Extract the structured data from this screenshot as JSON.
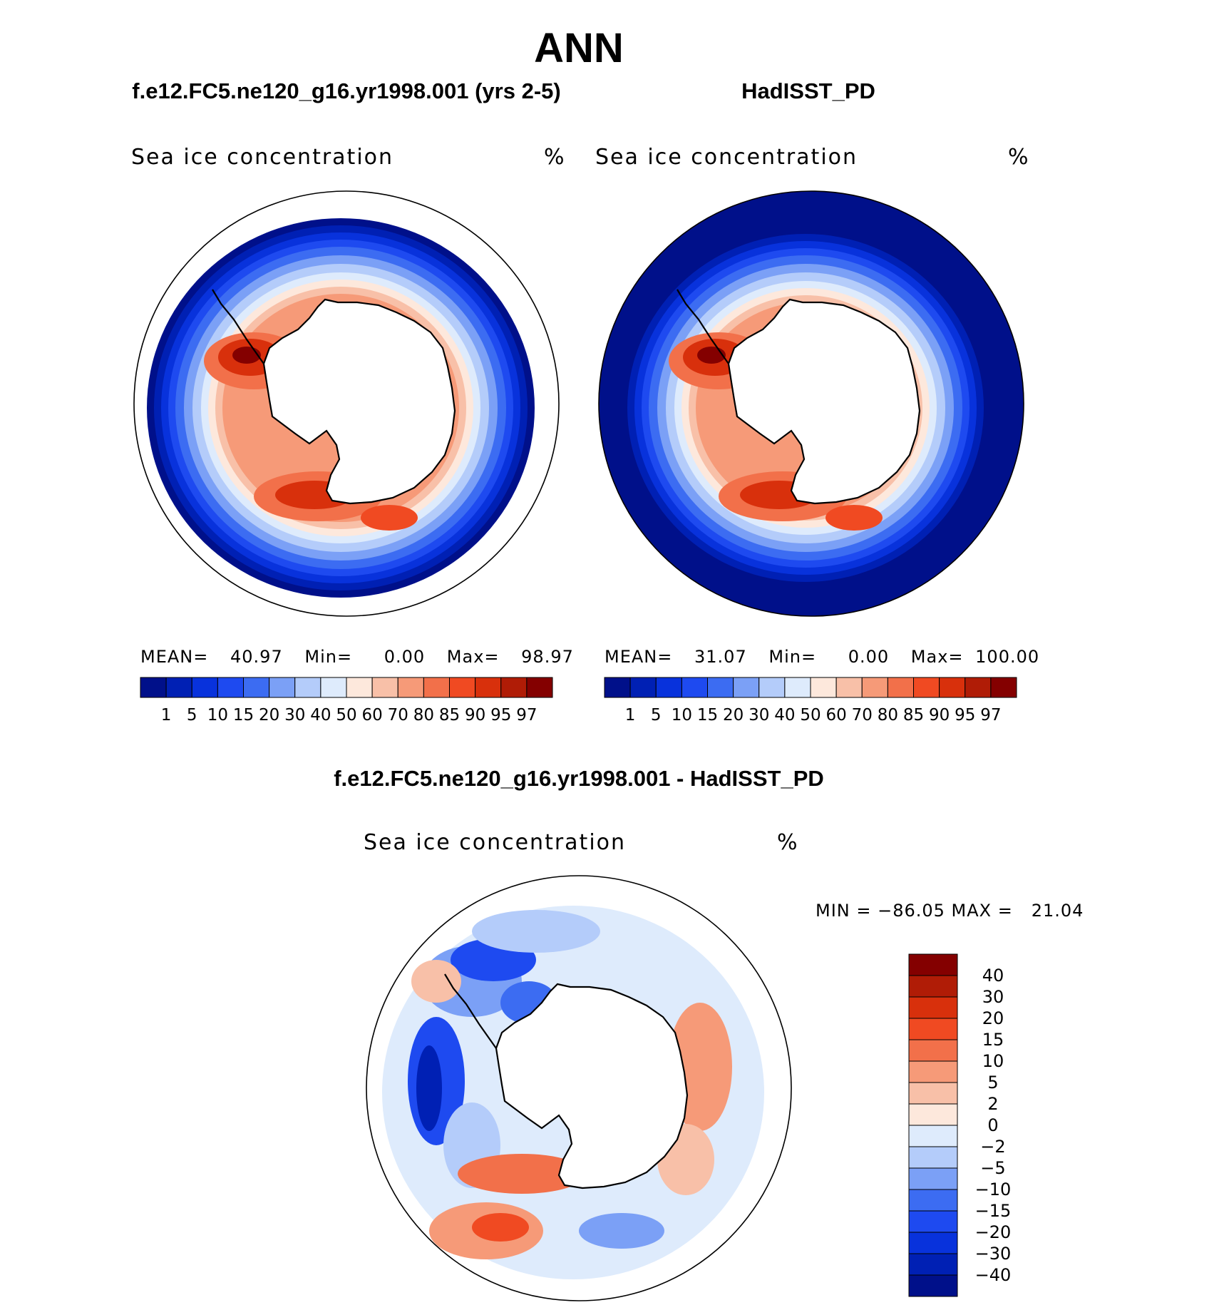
{
  "title": "ANN",
  "panels": [
    {
      "id": "model",
      "case_title": "f.e12.FC5.ne120_g16.yr1998.001 (yrs 2-5)",
      "field_label": "Sea ice concentration",
      "units": "%",
      "stats": {
        "mean_label": "MEAN=",
        "mean": "40.97",
        "min_label": "Min=",
        "min": "0.00",
        "max_label": "Max=",
        "max": "98.97"
      }
    },
    {
      "id": "obs",
      "case_title": "HadISST_PD",
      "field_label": "Sea ice concentration",
      "units": "%",
      "stats": {
        "mean_label": "MEAN=",
        "mean": "31.07",
        "min_label": "Min=",
        "min": "0.00",
        "max_label": "Max=",
        "max": "100.00"
      }
    },
    {
      "id": "diff",
      "case_title": "f.e12.FC5.ne120_g16.yr1998.001 - HadISST_PD",
      "field_label": "Sea ice concentration",
      "units": "%",
      "stats": {
        "minmax_text": "MIN = −86.05 MAX =   21.04"
      }
    }
  ],
  "chart_data": [
    {
      "type": "heatmap",
      "projection": "south polar stereographic",
      "title": "f.e12.FC5.ne120_g16.yr1998.001 (yrs 2-5)",
      "subtitle": "Sea ice concentration",
      "units": "%",
      "stats": {
        "mean": 40.97,
        "min": 0.0,
        "max": 98.97
      },
      "contour_levels": [
        1,
        5,
        10,
        15,
        20,
        30,
        40,
        50,
        60,
        70,
        80,
        85,
        90,
        95,
        97
      ],
      "level_labels": [
        "1",
        "5",
        "10",
        "15",
        "20",
        "30",
        "40",
        "50",
        "60",
        "70",
        "80",
        "85",
        "90",
        "95",
        "97"
      ],
      "colors": [
        "#00108a",
        "#0020b4",
        "#0832dc",
        "#1e4af0",
        "#3c6cf2",
        "#7ba0f6",
        "#b4ccfa",
        "#deebfc",
        "#fde8dc",
        "#f8c0a8",
        "#f69a78",
        "#f2704a",
        "#f04a22",
        "#d8300c",
        "#b01c06",
        "#840000"
      ]
    },
    {
      "type": "heatmap",
      "projection": "south polar stereographic",
      "title": "HadISST_PD",
      "subtitle": "Sea ice concentration",
      "units": "%",
      "stats": {
        "mean": 31.07,
        "min": 0.0,
        "max": 100.0
      },
      "contour_levels": [
        1,
        5,
        10,
        15,
        20,
        30,
        40,
        50,
        60,
        70,
        80,
        85,
        90,
        95,
        97
      ],
      "level_labels": [
        "1",
        "5",
        "10",
        "15",
        "20",
        "30",
        "40",
        "50",
        "60",
        "70",
        "80",
        "85",
        "90",
        "95",
        "97"
      ],
      "colors": [
        "#00108a",
        "#0020b4",
        "#0832dc",
        "#1e4af0",
        "#3c6cf2",
        "#7ba0f6",
        "#b4ccfa",
        "#deebfc",
        "#fde8dc",
        "#f8c0a8",
        "#f69a78",
        "#f2704a",
        "#f04a22",
        "#d8300c",
        "#b01c06",
        "#840000"
      ]
    },
    {
      "type": "heatmap",
      "projection": "south polar stereographic",
      "title": "f.e12.FC5.ne120_g16.yr1998.001 - HadISST_PD",
      "subtitle": "Sea ice concentration",
      "units": "%",
      "stats": {
        "min": -86.05,
        "max": 21.04
      },
      "contour_levels": [
        40,
        30,
        20,
        15,
        10,
        5,
        2,
        0,
        -2,
        -5,
        -10,
        -15,
        -20,
        -30,
        -40
      ],
      "level_labels": [
        "40",
        "30",
        "20",
        "15",
        "10",
        "5",
        "2",
        "0",
        "−2",
        "−5",
        "−10",
        "−15",
        "−20",
        "−30",
        "−40"
      ],
      "colors": [
        "#840000",
        "#b01c06",
        "#d8300c",
        "#f04a22",
        "#f2704a",
        "#f69a78",
        "#f8c0a8",
        "#fde8dc",
        "#deebfc",
        "#b4ccfa",
        "#7ba0f6",
        "#3c6cf2",
        "#1e4af0",
        "#0832dc",
        "#0020b4",
        "#00108a"
      ]
    }
  ]
}
